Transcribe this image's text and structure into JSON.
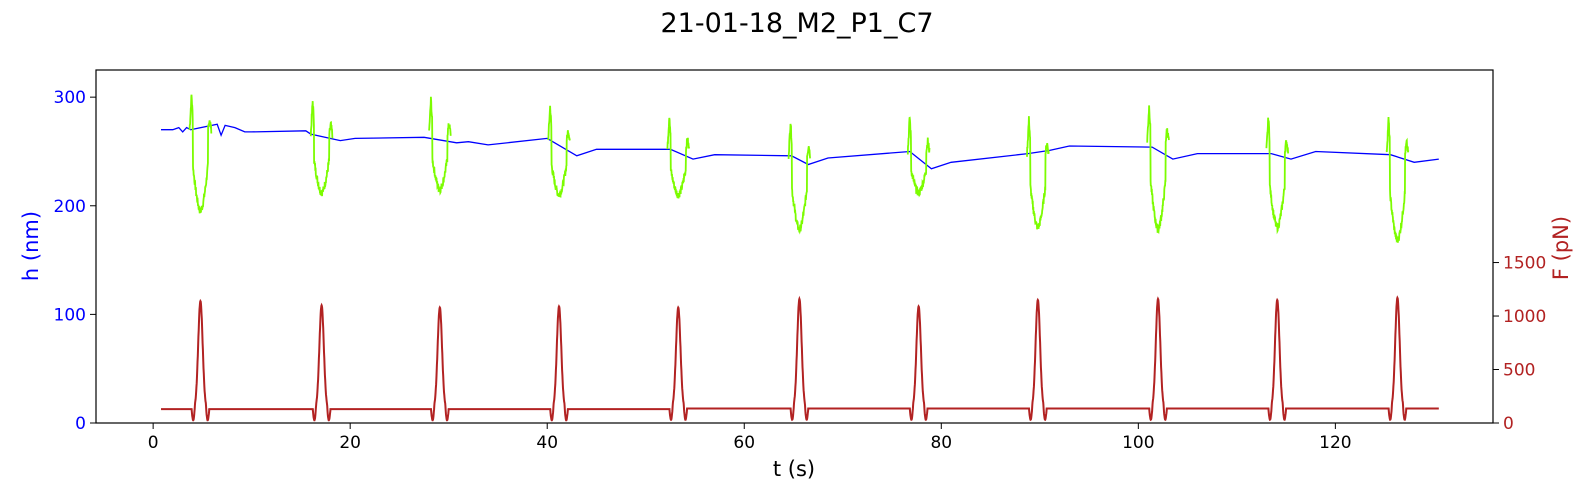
{
  "chart_data": {
    "type": "line",
    "title": "21-01-18_M2_P1_C7",
    "xlabel": "t (s)",
    "ylabel_left": "h (nm)",
    "ylabel_right": "F (pN)",
    "xlim": [
      -5.8,
      136
    ],
    "ylim_left": [
      0,
      325
    ],
    "ylim_right": [
      0,
      3300
    ],
    "xticks": [
      0,
      20,
      40,
      60,
      80,
      100,
      120
    ],
    "yticks_left": [
      0,
      100,
      200,
      300
    ],
    "yticks_right": [
      0,
      500,
      1000,
      1500
    ],
    "grid": false,
    "colors": {
      "height_baseline": "#0000ff",
      "height_compression": "#7cfc00",
      "force": "#b22222",
      "left_axis": "#0000ff",
      "right_axis": "#b22222"
    },
    "cycles": [
      {
        "t": 4.8,
        "h_base": 270,
        "h_min": 195,
        "f_peak": 1140
      },
      {
        "t": 17.1,
        "h_base": 265,
        "h_min": 212,
        "f_peak": 1100
      },
      {
        "t": 29.1,
        "h_base": 266,
        "h_min": 215,
        "f_peak": 1080
      },
      {
        "t": 41.2,
        "h_base": 260,
        "h_min": 210,
        "f_peak": 1090
      },
      {
        "t": 53.3,
        "h_base": 252,
        "h_min": 210,
        "f_peak": 1080
      },
      {
        "t": 65.6,
        "h_base": 246,
        "h_min": 178,
        "f_peak": 1160
      },
      {
        "t": 77.7,
        "h_base": 250,
        "h_min": 212,
        "f_peak": 1090
      },
      {
        "t": 89.8,
        "h_base": 248,
        "h_min": 180,
        "f_peak": 1150
      },
      {
        "t": 102.0,
        "h_base": 260,
        "h_min": 178,
        "f_peak": 1160
      },
      {
        "t": 114.1,
        "h_base": 250,
        "h_min": 180,
        "f_peak": 1150
      },
      {
        "t": 126.3,
        "h_base": 248,
        "h_min": 168,
        "f_peak": 1170
      }
    ],
    "height_baseline": {
      "t": [
        0.8,
        2.0,
        2.6,
        3.0,
        3.4,
        3.8,
        6.5,
        6.9,
        7.3,
        8.3,
        9.3,
        10.0,
        15.5,
        16.0,
        19.0,
        20.5,
        27.5,
        30.8,
        32.0,
        34.0,
        40.0,
        43.0,
        45.0,
        52.5,
        54.8,
        57.0,
        64.8,
        66.5,
        68.5,
        76.8,
        79.0,
        81.0,
        88.8,
        91.0,
        93.0,
        101.4,
        103.5,
        106.0,
        113.5,
        115.5,
        118.0,
        125.6,
        128.0,
        130.5
      ],
      "h": [
        270,
        270,
        272,
        268,
        272,
        270,
        275,
        265,
        274,
        272,
        268,
        268,
        269,
        266,
        260,
        262,
        263,
        258,
        259,
        256,
        262,
        246,
        252,
        252,
        243,
        247,
        246,
        238,
        244,
        250,
        234,
        240,
        248,
        251,
        255,
        254,
        243,
        248,
        248,
        243,
        250,
        247,
        240,
        243
      ]
    },
    "force_baseline": [
      {
        "t0": 0.8,
        "t1": 4.0,
        "f": 130
      },
      {
        "t0": 5.6,
        "t1": 16.3,
        "f": 130
      },
      {
        "t0": 17.9,
        "t1": 28.3,
        "f": 130
      },
      {
        "t0": 29.9,
        "t1": 40.4,
        "f": 130
      },
      {
        "t0": 42.0,
        "t1": 52.5,
        "f": 130
      },
      {
        "t0": 54.1,
        "t1": 64.8,
        "f": 135
      },
      {
        "t0": 66.4,
        "t1": 76.9,
        "f": 135
      },
      {
        "t0": 78.5,
        "t1": 89.0,
        "f": 135
      },
      {
        "t0": 90.6,
        "t1": 101.2,
        "f": 135
      },
      {
        "t0": 102.8,
        "t1": 113.3,
        "f": 135
      },
      {
        "t0": 114.9,
        "t1": 125.5,
        "f": 135
      },
      {
        "t0": 127.1,
        "t1": 130.5,
        "f": 135
      }
    ]
  }
}
